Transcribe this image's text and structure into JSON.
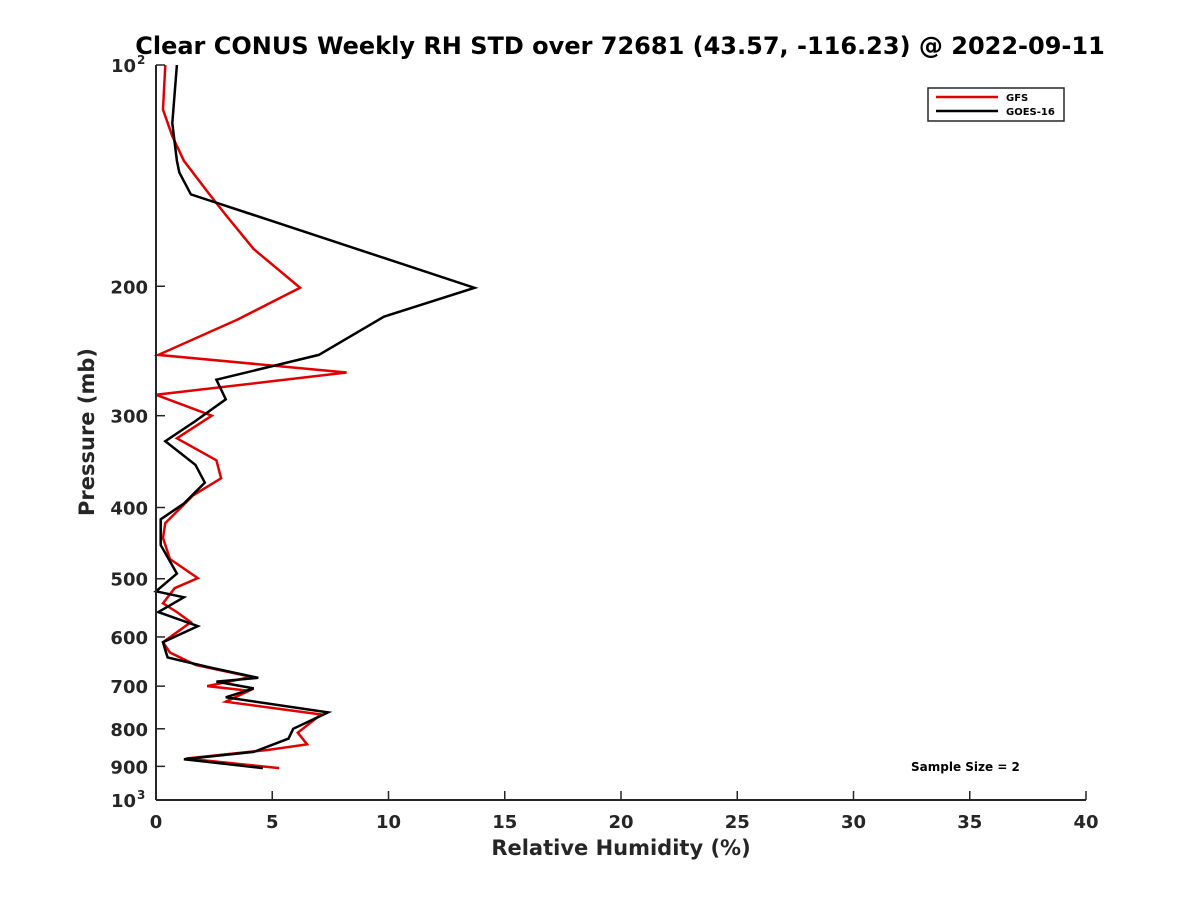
{
  "chart_data": {
    "type": "line",
    "title": "Clear CONUS Weekly RH STD over 72681 (43.57, -116.23) @ 2022-09-11",
    "xlabel": "Relative Humidity (%)",
    "ylabel": "Pressure (mb)",
    "xlim": [
      0,
      40
    ],
    "ylim": [
      100,
      1000
    ],
    "yscale": "log",
    "y_reversed": true,
    "xticks": [
      0,
      5,
      10,
      15,
      20,
      25,
      30,
      35,
      40
    ],
    "yticks": [
      {
        "value": 100,
        "label": "10",
        "exp": "2"
      },
      {
        "value": 200,
        "label": "200",
        "exp": ""
      },
      {
        "value": 300,
        "label": "300",
        "exp": ""
      },
      {
        "value": 400,
        "label": "400",
        "exp": ""
      },
      {
        "value": 500,
        "label": "500",
        "exp": ""
      },
      {
        "value": 600,
        "label": "600",
        "exp": ""
      },
      {
        "value": 700,
        "label": "700",
        "exp": ""
      },
      {
        "value": 800,
        "label": "800",
        "exp": ""
      },
      {
        "value": 900,
        "label": "900",
        "exp": ""
      },
      {
        "value": 1000,
        "label": "10",
        "exp": "3"
      }
    ],
    "grid": false,
    "legend_position": "top-right",
    "annotation": "Sample Size = 2",
    "series": [
      {
        "name": "GFS",
        "color": "#e00000",
        "points": [
          [
            0.4,
            100
          ],
          [
            0.3,
            115
          ],
          [
            0.7,
            125
          ],
          [
            1.2,
            135
          ],
          [
            2.3,
            150
          ],
          [
            3.0,
            160
          ],
          [
            4.2,
            178
          ],
          [
            6.2,
            201
          ],
          [
            3.5,
            222
          ],
          [
            0.1,
            248
          ],
          [
            8.2,
            262
          ],
          [
            0.0,
            281
          ],
          [
            2.4,
            300
          ],
          [
            0.9,
            322
          ],
          [
            2.6,
            345
          ],
          [
            2.8,
            365
          ],
          [
            1.6,
            385
          ],
          [
            0.4,
            420
          ],
          [
            0.3,
            440
          ],
          [
            0.6,
            470
          ],
          [
            1.8,
            499
          ],
          [
            0.8,
            515
          ],
          [
            0.3,
            540
          ],
          [
            0.9,
            555
          ],
          [
            1.5,
            573
          ],
          [
            0.3,
            610
          ],
          [
            0.6,
            630
          ],
          [
            1.7,
            655
          ],
          [
            4.1,
            680
          ],
          [
            2.2,
            700
          ],
          [
            4.0,
            710
          ],
          [
            3.0,
            735
          ],
          [
            7.1,
            765
          ],
          [
            6.1,
            810
          ],
          [
            6.5,
            840
          ],
          [
            4.8,
            855
          ],
          [
            1.3,
            878
          ],
          [
            5.3,
            905
          ]
        ]
      },
      {
        "name": "GOES-16",
        "color": "#000000",
        "points": [
          [
            0.9,
            100
          ],
          [
            0.7,
            120
          ],
          [
            0.9,
            135
          ],
          [
            1.0,
            140
          ],
          [
            1.5,
            150
          ],
          [
            4.2,
            160
          ],
          [
            13.7,
            201
          ],
          [
            9.8,
            220
          ],
          [
            7.0,
            248
          ],
          [
            2.6,
            268
          ],
          [
            3.0,
            285
          ],
          [
            1.7,
            305
          ],
          [
            0.4,
            325
          ],
          [
            1.7,
            350
          ],
          [
            2.1,
            370
          ],
          [
            1.2,
            395
          ],
          [
            0.2,
            415
          ],
          [
            0.2,
            450
          ],
          [
            0.9,
            492
          ],
          [
            0.0,
            520
          ],
          [
            1.2,
            530
          ],
          [
            0.1,
            555
          ],
          [
            1.8,
            580
          ],
          [
            0.3,
            610
          ],
          [
            0.4,
            625
          ],
          [
            0.5,
            640
          ],
          [
            2.3,
            660
          ],
          [
            4.4,
            682
          ],
          [
            2.6,
            690
          ],
          [
            4.2,
            705
          ],
          [
            3.0,
            725
          ],
          [
            7.4,
            760
          ],
          [
            5.9,
            800
          ],
          [
            5.7,
            825
          ],
          [
            4.2,
            860
          ],
          [
            1.2,
            880
          ],
          [
            4.6,
            905
          ]
        ]
      }
    ]
  }
}
